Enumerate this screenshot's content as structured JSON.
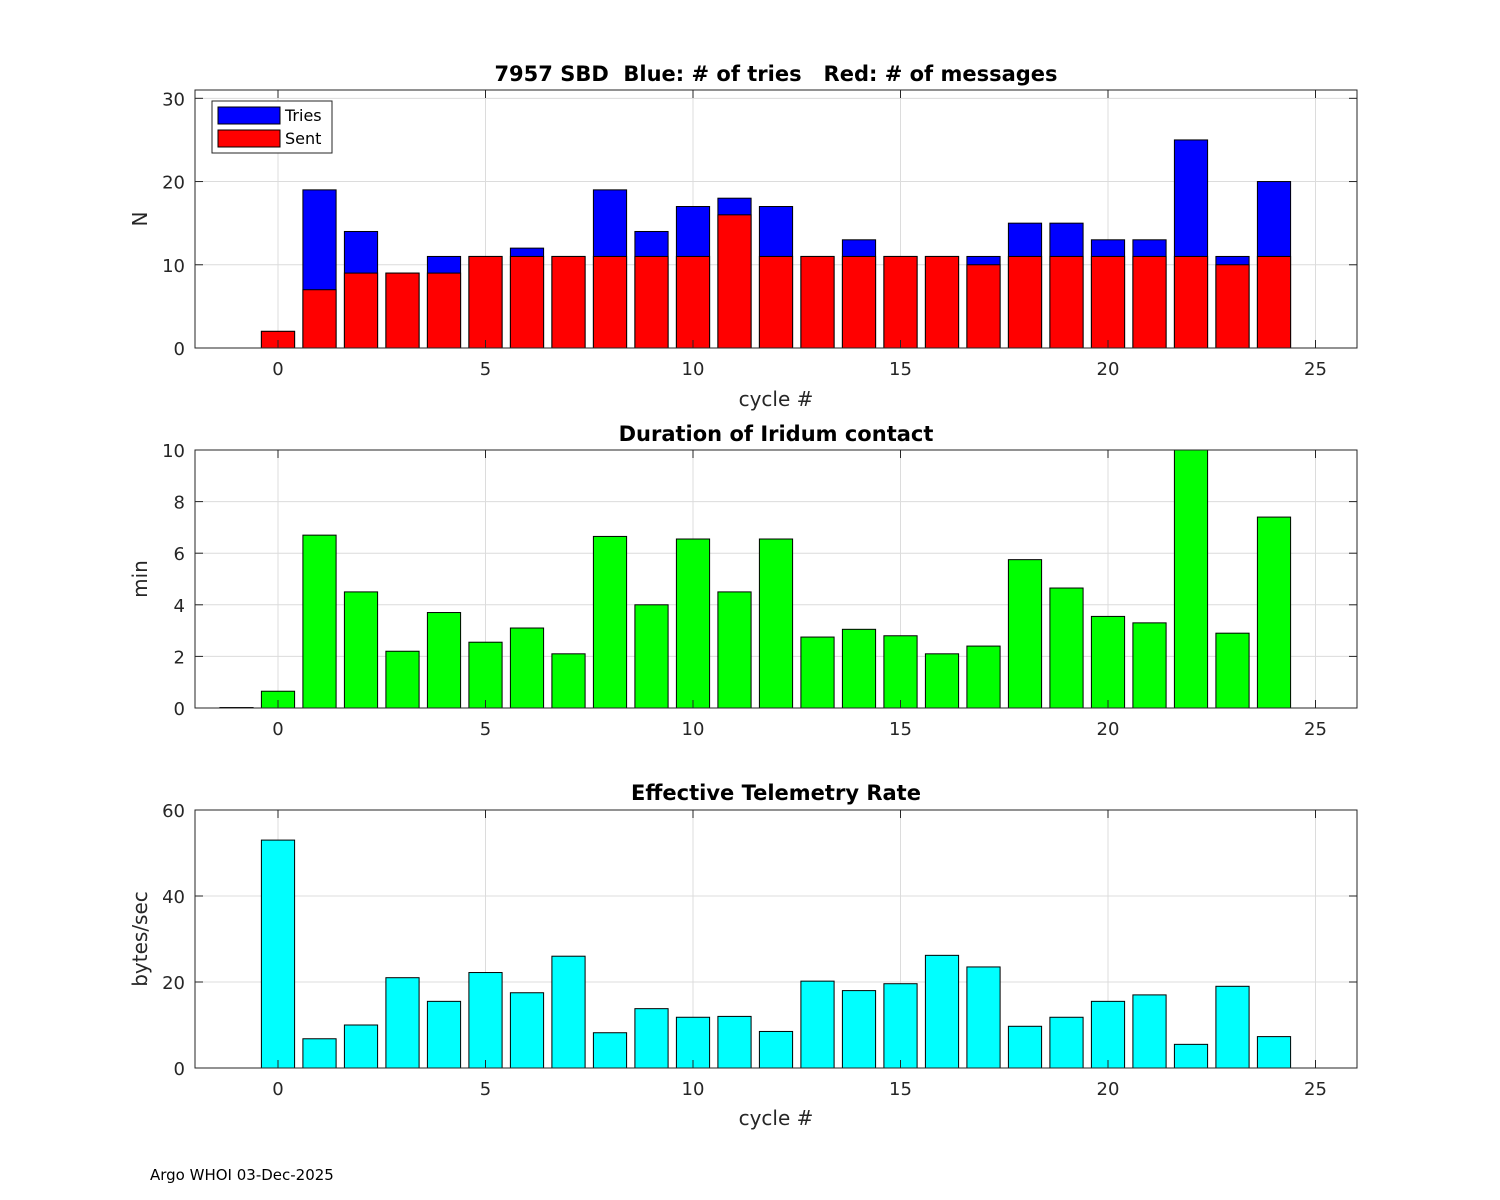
{
  "colors": {
    "tries": "#0000ff",
    "sent": "#ff0000",
    "duration": "#00ff00",
    "rate": "#00ffff"
  },
  "footer": "Argo WHOI 03-Dec-2025",
  "chart_data": [
    {
      "type": "bar",
      "title": "7957 SBD  Blue: # of tries   Red: # of messages",
      "xlabel": "cycle #",
      "ylabel": "N",
      "xlim": [
        -2,
        26
      ],
      "ylim": [
        0,
        31
      ],
      "xticks": [
        0,
        5,
        10,
        15,
        20,
        25
      ],
      "yticks": [
        0,
        10,
        20,
        30
      ],
      "grid": true,
      "legend": {
        "position": "top-left",
        "entries": [
          "Tries",
          "Sent"
        ]
      },
      "x": [
        0,
        1,
        2,
        3,
        4,
        5,
        6,
        7,
        8,
        9,
        10,
        11,
        12,
        13,
        14,
        15,
        16,
        17,
        18,
        19,
        20,
        21,
        22,
        23,
        24
      ],
      "series": [
        {
          "name": "Tries",
          "color": "#0000ff",
          "values": [
            2,
            19,
            14,
            9,
            11,
            11,
            12,
            11,
            19,
            14,
            17,
            18,
            17,
            11,
            13,
            11,
            11,
            11,
            15,
            15,
            13,
            13,
            25,
            11,
            20
          ]
        },
        {
          "name": "Sent",
          "color": "#ff0000",
          "values": [
            2,
            7,
            9,
            9,
            9,
            11,
            11,
            11,
            11,
            11,
            11,
            16,
            11,
            11,
            11,
            11,
            11,
            10,
            11,
            11,
            11,
            11,
            11,
            10,
            11
          ]
        }
      ]
    },
    {
      "type": "bar",
      "title": "Duration of Iridum contact",
      "xlabel": "",
      "ylabel": "min",
      "xlim": [
        -2,
        26
      ],
      "ylim": [
        0,
        10
      ],
      "xticks": [
        0,
        5,
        10,
        15,
        20,
        25
      ],
      "yticks": [
        0,
        2,
        4,
        6,
        8,
        10
      ],
      "grid": true,
      "x": [
        -1,
        0,
        1,
        2,
        3,
        4,
        5,
        6,
        7,
        8,
        9,
        10,
        11,
        12,
        13,
        14,
        15,
        16,
        17,
        18,
        19,
        20,
        21,
        22,
        23,
        24
      ],
      "series": [
        {
          "name": "Duration",
          "color": "#00ff00",
          "values": [
            0,
            0.65,
            6.7,
            4.5,
            2.2,
            3.7,
            2.55,
            3.1,
            2.1,
            6.65,
            4.0,
            6.55,
            4.5,
            6.55,
            2.75,
            3.05,
            2.8,
            2.1,
            2.4,
            5.75,
            4.65,
            3.55,
            3.3,
            10.2,
            2.9,
            7.4
          ]
        }
      ]
    },
    {
      "type": "bar",
      "title": "Effective Telemetry Rate",
      "xlabel": "cycle #",
      "ylabel": "bytes/sec",
      "xlim": [
        -2,
        26
      ],
      "ylim": [
        0,
        60
      ],
      "xticks": [
        0,
        5,
        10,
        15,
        20,
        25
      ],
      "yticks": [
        0,
        20,
        40,
        60
      ],
      "grid": true,
      "x": [
        0,
        1,
        2,
        3,
        4,
        5,
        6,
        7,
        8,
        9,
        10,
        11,
        12,
        13,
        14,
        15,
        16,
        17,
        18,
        19,
        20,
        21,
        22,
        23,
        24
      ],
      "series": [
        {
          "name": "Rate",
          "color": "#00ffff",
          "values": [
            53,
            6.8,
            10,
            21,
            15.5,
            22.2,
            17.5,
            26,
            8.2,
            13.8,
            11.8,
            12,
            8.5,
            20.2,
            18,
            19.6,
            26.2,
            23.5,
            9.7,
            11.8,
            15.5,
            17,
            5.5,
            19,
            7.3
          ]
        }
      ]
    }
  ]
}
